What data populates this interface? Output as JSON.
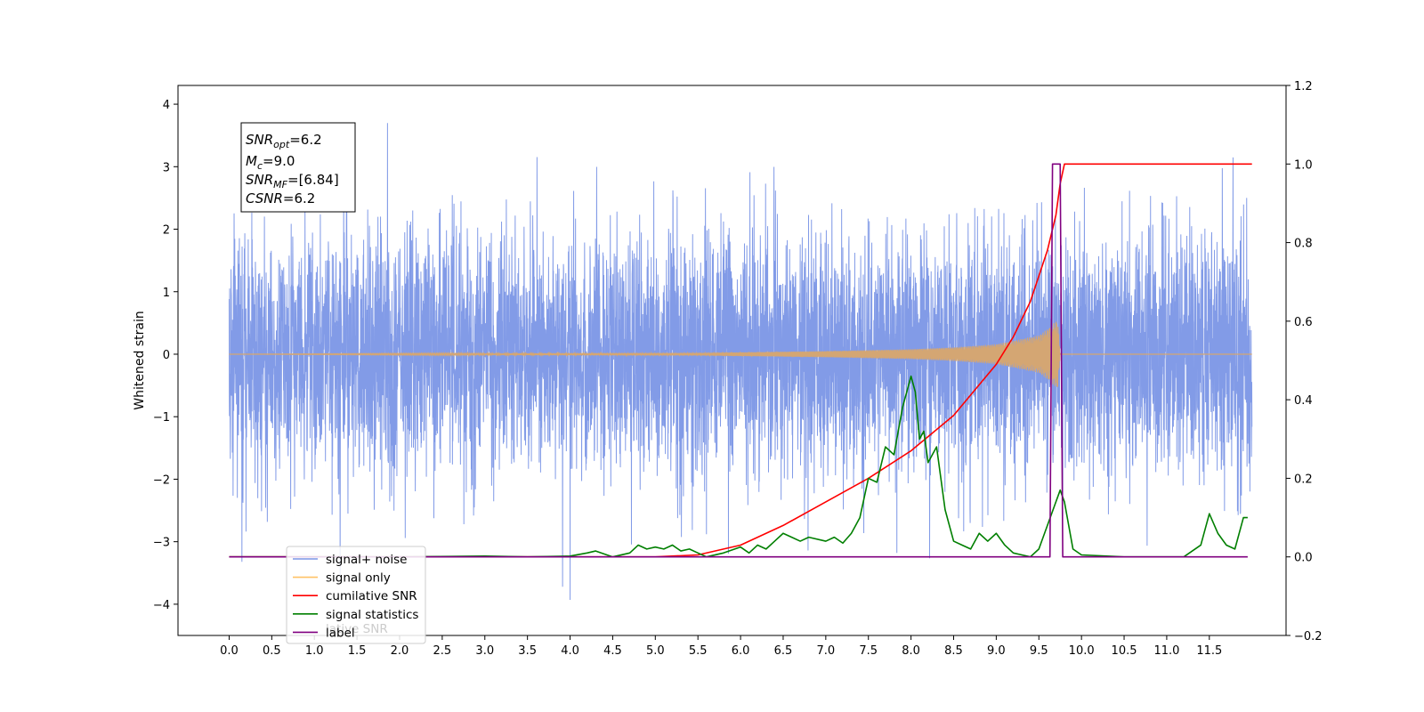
{
  "chart_data": {
    "type": "line",
    "title": "",
    "xlabel": "",
    "ylabel": "Whitened strain",
    "xlim": [
      -0.6,
      12.4
    ],
    "ylim": [
      -4.5,
      4.3
    ],
    "y2lim": [
      -0.2,
      1.2
    ],
    "grid": false,
    "x_ticks": [
      "0.0",
      "0.5",
      "1.0",
      "1.5",
      "2.0",
      "2.5",
      "3.0",
      "3.5",
      "4.0",
      "4.5",
      "5.0",
      "5.5",
      "6.0",
      "6.5",
      "7.0",
      "7.5",
      "8.0",
      "8.5",
      "9.0",
      "9.5",
      "10.0",
      "10.5",
      "11.0",
      "11.5"
    ],
    "y_ticks": [
      "4",
      "3",
      "2",
      "1",
      "0",
      "−1",
      "−2",
      "−3",
      "−4"
    ],
    "y2_ticks": [
      "1.2",
      "1.0",
      "0.8",
      "0.6",
      "0.4",
      "0.2",
      "0.0",
      "−0.2"
    ],
    "annotation": {
      "lines": [
        {
          "base": "SNR",
          "sub": "opt",
          "rest": "=6.2"
        },
        {
          "base": "M",
          "sub": "c",
          "rest": "=9.0"
        },
        {
          "base": "SNR",
          "sub": "MF",
          "rest": "=[6.84]"
        },
        {
          "base": "CSNR",
          "sub": "",
          "rest": "=6.2"
        }
      ]
    },
    "legend": {
      "location": "lower-left",
      "entries": [
        {
          "label": "signal+ noise",
          "color": "#7b96e6"
        },
        {
          "label": "signal only",
          "color": "#ffc266"
        },
        {
          "label": "cumilative SNR",
          "color": "#ff0000"
        },
        {
          "label": "signal statistics",
          "color": "#007f00"
        },
        {
          "label": "label",
          "color": "#800080"
        }
      ],
      "ghost_text": "lative SNR"
    },
    "series": [
      {
        "name": "signal+ noise",
        "axis": "left",
        "color": "#7b96e6",
        "description_stats": {
          "x_start": 0.0,
          "x_end": 12.0,
          "std": 0.95,
          "min": -4.1,
          "max": 3.9
        }
      },
      {
        "name": "signal only",
        "axis": "left",
        "color": "#d4a673",
        "envelope": {
          "x": [
            0.0,
            5.5,
            7.0,
            8.0,
            8.5,
            9.0,
            9.5,
            9.6,
            9.72,
            9.75,
            12.0
          ],
          "amp": [
            0.0,
            0.02,
            0.05,
            0.08,
            0.11,
            0.16,
            0.3,
            0.4,
            0.55,
            0.0,
            0.0
          ]
        }
      },
      {
        "name": "cumilative SNR",
        "axis": "right",
        "color": "#ff0000",
        "x": [
          0.0,
          5.0,
          5.5,
          6.0,
          6.5,
          7.0,
          7.5,
          8.0,
          8.5,
          9.0,
          9.2,
          9.4,
          9.6,
          9.7,
          9.75,
          9.8,
          12.0
        ],
        "values": [
          0.0,
          0.0,
          0.005,
          0.03,
          0.08,
          0.14,
          0.2,
          0.27,
          0.36,
          0.49,
          0.56,
          0.65,
          0.78,
          0.87,
          0.95,
          1.0,
          1.0
        ]
      },
      {
        "name": "signal statistics",
        "axis": "right",
        "color": "#007f00",
        "x": [
          0.0,
          1.0,
          2.0,
          3.0,
          3.5,
          4.0,
          4.2,
          4.3,
          4.5,
          4.7,
          4.8,
          4.9,
          5.0,
          5.1,
          5.2,
          5.3,
          5.4,
          5.5,
          5.6,
          5.8,
          6.0,
          6.1,
          6.2,
          6.3,
          6.4,
          6.5,
          6.6,
          6.7,
          6.8,
          7.0,
          7.1,
          7.2,
          7.3,
          7.4,
          7.5,
          7.6,
          7.7,
          7.8,
          7.9,
          8.0,
          8.05,
          8.1,
          8.15,
          8.2,
          8.3,
          8.4,
          8.5,
          8.6,
          8.7,
          8.8,
          8.9,
          9.0,
          9.1,
          9.2,
          9.3,
          9.4,
          9.5,
          9.6,
          9.7,
          9.75,
          9.8,
          9.9,
          10.0,
          10.5,
          11.0,
          11.2,
          11.3,
          11.4,
          11.5,
          11.6,
          11.7,
          11.8,
          11.9,
          11.95
        ],
        "values": [
          0.0,
          0.0,
          0.0,
          0.002,
          0.0,
          0.002,
          0.01,
          0.015,
          0.0,
          0.01,
          0.03,
          0.02,
          0.025,
          0.02,
          0.03,
          0.015,
          0.02,
          0.01,
          0.0,
          0.01,
          0.025,
          0.01,
          0.03,
          0.02,
          0.04,
          0.06,
          0.05,
          0.04,
          0.05,
          0.04,
          0.05,
          0.035,
          0.06,
          0.1,
          0.2,
          0.19,
          0.28,
          0.26,
          0.38,
          0.46,
          0.42,
          0.3,
          0.32,
          0.24,
          0.28,
          0.12,
          0.04,
          0.03,
          0.02,
          0.06,
          0.04,
          0.06,
          0.03,
          0.01,
          0.005,
          0.0,
          0.02,
          0.08,
          0.14,
          0.17,
          0.14,
          0.02,
          0.005,
          0.0,
          0.0,
          0.0,
          0.015,
          0.03,
          0.11,
          0.06,
          0.03,
          0.02,
          0.1,
          0.1
        ]
      },
      {
        "name": "label",
        "axis": "right",
        "color": "#800080",
        "x": [
          0.0,
          9.63,
          9.66,
          9.75,
          9.78,
          11.95
        ],
        "values": [
          0.0,
          0.0,
          1.0,
          1.0,
          0.0,
          0.0
        ]
      }
    ]
  }
}
